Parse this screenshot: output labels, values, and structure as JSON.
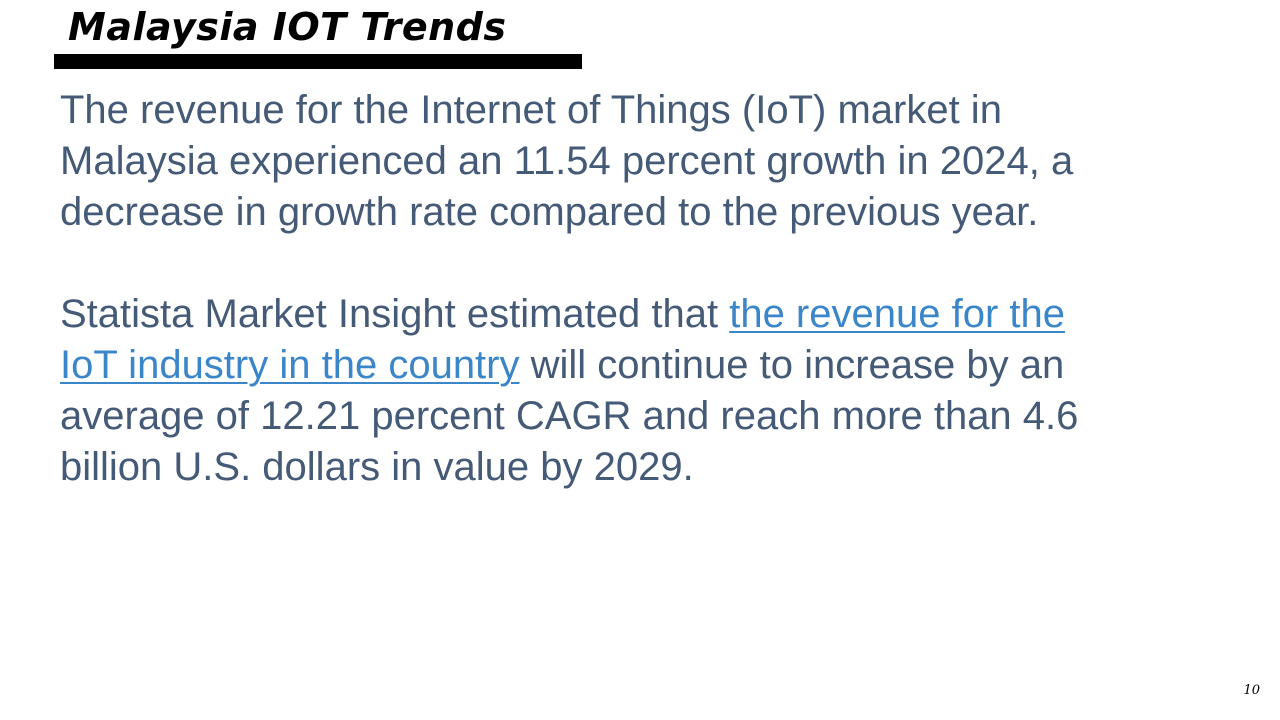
{
  "slide": {
    "title": "Malaysia IOT Trends",
    "paragraph1": "The revenue for the Internet of Things (IoT) market in Malaysia experienced an 11.54 percent growth in 2024, a decrease in growth rate compared to the previous year.",
    "paragraph2": {
      "before_link": "Statista Market Insight estimated that ",
      "link_text": "the revenue for the IoT industry in the country",
      "after_link": " will continue to increase by an average of 12.21 percent CAGR and reach more than 4.6 billion U.S. dollars in value by 2029."
    },
    "page_number": "10"
  },
  "colors": {
    "body_text": "#455a77",
    "link": "#3a86c8",
    "title": "#000000",
    "title_rule": "#000000"
  }
}
